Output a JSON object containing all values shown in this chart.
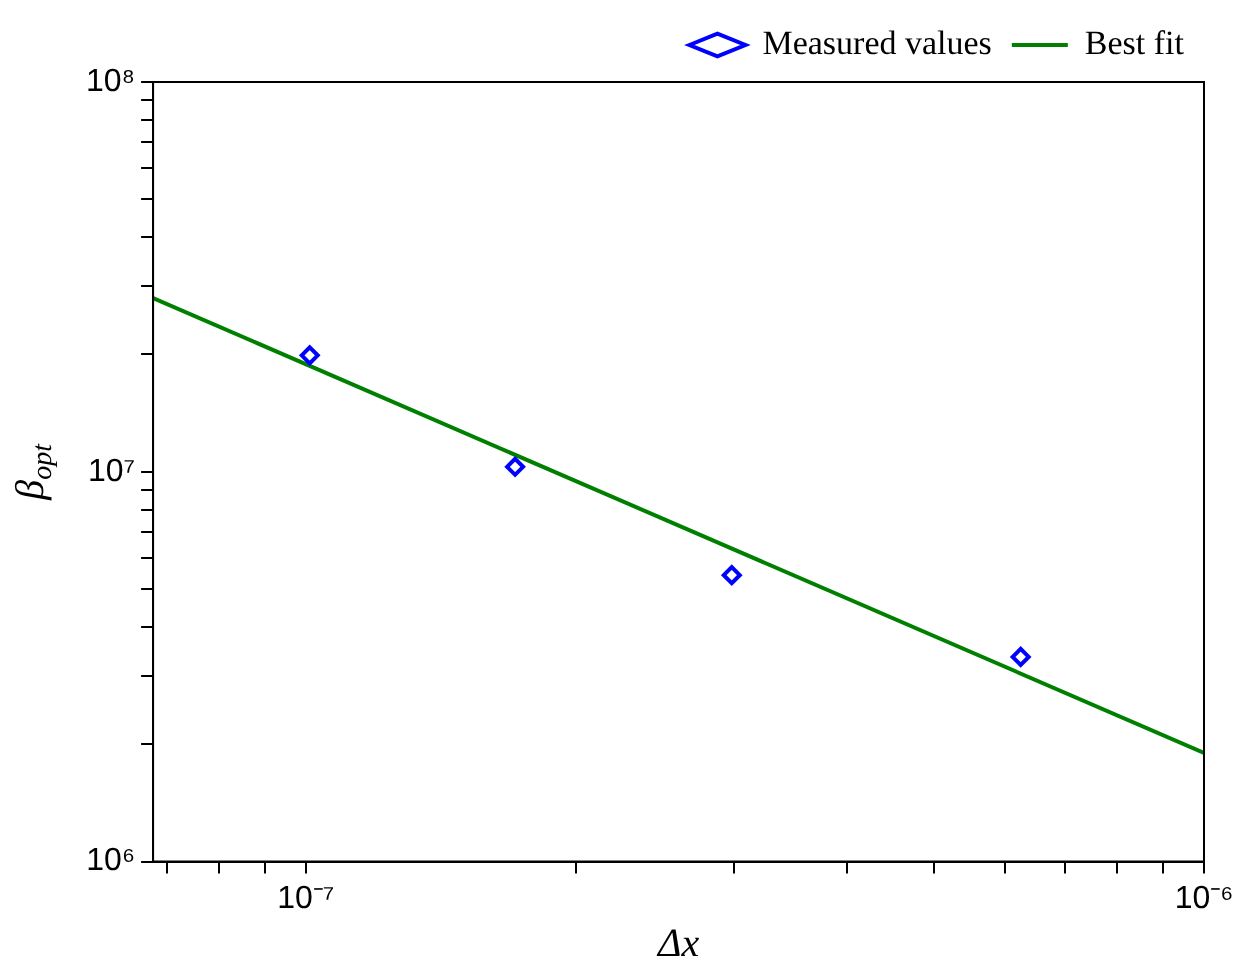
{
  "chart_data": {
    "type": "scatter",
    "xlabel": "Δx",
    "ylabel": "β$_{opt}$",
    "log": "xy",
    "legend": "top right",
    "xlim": [
      6.76e-08,
      1e-06
    ],
    "ylim": [
      1000000.0,
      100000000.0
    ],
    "xticks": [
      {
        "value": 7e-08,
        "label": null
      },
      {
        "value": 8e-08,
        "label": null
      },
      {
        "value": 9e-08,
        "label": null
      },
      {
        "value": 1e-07,
        "label": "10⁻⁷"
      },
      {
        "value": 2e-07,
        "label": null
      },
      {
        "value": 3e-07,
        "label": null
      },
      {
        "value": 4e-07,
        "label": null
      },
      {
        "value": 5e-07,
        "label": null
      },
      {
        "value": 6e-07,
        "label": null
      },
      {
        "value": 7e-07,
        "label": null
      },
      {
        "value": 8e-07,
        "label": null
      },
      {
        "value": 9e-07,
        "label": null
      },
      {
        "value": 1e-06,
        "label": "10⁻⁶"
      }
    ],
    "yticks": [
      {
        "value": 1000000.0,
        "label": "10⁶"
      },
      {
        "value": 2000000.0,
        "label": null
      },
      {
        "value": 3000000.0,
        "label": null
      },
      {
        "value": 4000000.0,
        "label": null
      },
      {
        "value": 5000000.0,
        "label": null
      },
      {
        "value": 6000000.0,
        "label": null
      },
      {
        "value": 7000000.0,
        "label": null
      },
      {
        "value": 8000000.0,
        "label": null
      },
      {
        "value": 9000000.0,
        "label": null
      },
      {
        "value": 10000000.0,
        "label": "10⁷"
      },
      {
        "value": 20000000.0,
        "label": null
      },
      {
        "value": 30000000.0,
        "label": null
      },
      {
        "value": 40000000.0,
        "label": null
      },
      {
        "value": 50000000.0,
        "label": null
      },
      {
        "value": 60000000.0,
        "label": null
      },
      {
        "value": 70000000.0,
        "label": null
      },
      {
        "value": 80000000.0,
        "label": null
      },
      {
        "value": 90000000.0,
        "label": null
      },
      {
        "value": 100000000.0,
        "label": "10⁸"
      }
    ],
    "series": [
      {
        "name": "Measured values",
        "marker": "diamond",
        "color": "#0000ff",
        "x": [
          1.01e-07,
          1.71e-07,
          2.98e-07,
          6.25e-07
        ],
        "values": [
          19900000.0,
          10300000.0,
          5430000.0,
          3350000.0
        ]
      },
      {
        "name": "Best fit",
        "type": "line",
        "marker": "none",
        "color": "#008000",
        "x": [
          6.76e-08,
          1e-06
        ],
        "values": [
          27900000.0,
          1900000.0
        ]
      }
    ]
  }
}
